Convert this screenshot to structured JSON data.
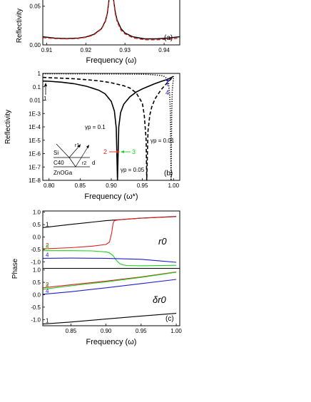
{
  "chart_data": [
    {
      "type": "line",
      "panel_label": "(a)",
      "xlabel": "Frequency (ω)",
      "ylabel": "Reflectivity",
      "xlim": [
        0.909,
        0.944
      ],
      "ylim": [
        0.0,
        0.058
      ],
      "x_ticks": [
        "0.91",
        "0.92",
        "0.93",
        "0.94"
      ],
      "x_tick_values": [
        0.91,
        0.92,
        0.93,
        0.94
      ],
      "y_ticks": [
        "0.00",
        "0.05"
      ],
      "y_tick_values": [
        0.0,
        0.05
      ],
      "series": [
        {
          "style": "solid",
          "color": "#000000",
          "x": [
            0.909,
            0.912,
            0.915,
            0.918,
            0.92,
            0.922,
            0.924,
            0.925,
            0.9255,
            0.926,
            0.927,
            0.9275,
            0.928,
            0.929,
            0.93,
            0.932,
            0.935,
            0.938,
            0.941,
            0.944
          ],
          "y": [
            0.0105,
            0.0088,
            0.0082,
            0.0088,
            0.0102,
            0.0135,
            0.021,
            0.031,
            0.041,
            0.062,
            0.062,
            0.043,
            0.032,
            0.021,
            0.0155,
            0.0105,
            0.0078,
            0.0078,
            0.0089,
            0.0105
          ]
        },
        {
          "style": "dashed",
          "color": "#e0211a",
          "x": [
            0.909,
            0.912,
            0.915,
            0.918,
            0.92,
            0.922,
            0.924,
            0.925,
            0.9255,
            0.926,
            0.927,
            0.9275,
            0.928,
            0.929,
            0.93,
            0.932,
            0.935,
            0.938,
            0.941,
            0.944
          ],
          "y": [
            0.0095,
            0.0082,
            0.0077,
            0.0083,
            0.0098,
            0.0128,
            0.0205,
            0.03,
            0.04,
            0.062,
            0.062,
            0.041,
            0.03,
            0.019,
            0.0142,
            0.0092,
            0.0066,
            0.0066,
            0.0074,
            0.0088
          ]
        }
      ]
    },
    {
      "type": "line",
      "panel_label": "(b)",
      "xlabel": "Frequency (ω*)",
      "ylabel": "Reflectivity",
      "xlim": [
        0.79,
        1.01
      ],
      "ylim_log10": [
        -8,
        0
      ],
      "x_ticks": [
        "0.80",
        "0.85",
        "0.90",
        "0.95",
        "1.00"
      ],
      "x_tick_values": [
        0.8,
        0.85,
        0.9,
        0.95,
        1.0
      ],
      "y_ticks": [
        "1",
        "0.1",
        "0.01",
        "1E-3",
        "1E-4",
        "1E-5",
        "1E-6",
        "1E-7",
        "1E-8"
      ],
      "y_tick_values_log10": [
        0,
        -1,
        -2,
        -3,
        -4,
        -5,
        -6,
        -7,
        -8
      ],
      "series": [
        {
          "style": "solid",
          "color": "#000000",
          "x": [
            0.79,
            0.8,
            0.82,
            0.84,
            0.86,
            0.88,
            0.89,
            0.9,
            0.905,
            0.908,
            0.91,
            0.912,
            0.915,
            0.92,
            0.93,
            0.94,
            0.95,
            0.96,
            0.97,
            0.98,
            0.99,
            1.0
          ],
          "y": [
            0.27,
            0.26,
            0.22,
            0.17,
            0.11,
            0.055,
            0.03,
            0.008,
            0.0015,
            8e-05,
            1e-08,
            0.0001,
            0.0012,
            0.005,
            0.018,
            0.04,
            0.07,
            0.11,
            0.17,
            0.25,
            0.35,
            0.6
          ]
        },
        {
          "style": "dashed",
          "color": "#000000",
          "x": [
            0.79,
            0.8,
            0.82,
            0.84,
            0.86,
            0.88,
            0.9,
            0.92,
            0.93,
            0.94,
            0.95,
            0.953,
            0.956,
            0.957,
            0.959,
            0.962,
            0.965,
            0.97,
            0.98,
            0.99,
            1.0
          ],
          "y": [
            0.5,
            0.48,
            0.44,
            0.4,
            0.34,
            0.28,
            0.2,
            0.12,
            0.08,
            0.035,
            0.006,
            0.0007,
            1e-05,
            1e-08,
            5e-05,
            0.0008,
            0.003,
            0.012,
            0.06,
            0.2,
            0.6
          ]
        },
        {
          "style": "dotted",
          "color": "#000000",
          "x": [
            0.79,
            0.82,
            0.86,
            0.9,
            0.94,
            0.96,
            0.98,
            0.985,
            0.99,
            0.992,
            0.994,
            0.995,
            0.996,
            0.997,
            0.998,
            1.0
          ],
          "y": [
            0.95,
            0.94,
            0.93,
            0.92,
            0.88,
            0.84,
            0.7,
            0.6,
            0.4,
            0.2,
            0.02,
            0.001,
            1e-08,
            0.001,
            0.05,
            0.6
          ]
        }
      ],
      "annotations": {
        "gamma_01": "γp = 0.1",
        "gamma_005": "γp = 0.05",
        "gamma_001": "γp = 0.01",
        "marker_1": "1",
        "marker_2": "2",
        "marker_3": "3",
        "marker_4": "4"
      },
      "inset": {
        "layer_top": "Si",
        "layer_mid": "C40",
        "layer_bottom": "ZnOGa",
        "thickness": "d",
        "r1": "r1",
        "r2": "r2"
      }
    },
    {
      "type": "line",
      "panel_label": "(c)",
      "xlabel": "Frequency (ω)",
      "ylabel": "Phase",
      "xlim": [
        0.81,
        1.005
      ],
      "x_ticks": [
        "0.85",
        "0.90",
        "0.95",
        "1.00"
      ],
      "x_tick_values": [
        0.85,
        0.9,
        0.95,
        1.0
      ],
      "subplots": [
        {
          "label": "r0",
          "ylim": [
            -1.25,
            1.05
          ],
          "y_ticks": [
            "1.0",
            "0.5",
            "0.0",
            "-0.5",
            "-1.0"
          ],
          "y_tick_values": [
            1.0,
            0.5,
            0.0,
            -0.5,
            -1.0
          ],
          "series": [
            {
              "name": "1",
              "color": "#000000",
              "x": [
                0.81,
                0.85,
                0.9,
                0.95,
                1.0
              ],
              "y": [
                0.38,
                0.51,
                0.66,
                0.76,
                0.83
              ]
            },
            {
              "name": "2",
              "color": "#dd1f1f",
              "x": [
                0.81,
                0.85,
                0.88,
                0.9,
                0.905,
                0.908,
                0.91,
                0.912,
                0.915,
                0.92,
                0.95,
                1.0
              ],
              "y": [
                -0.48,
                -0.43,
                -0.37,
                -0.3,
                -0.2,
                0.15,
                0.55,
                0.66,
                0.68,
                0.7,
                0.76,
                0.82
              ]
            },
            {
              "name": "3",
              "color": "#1fcf1f",
              "x": [
                0.81,
                0.85,
                0.88,
                0.9,
                0.905,
                0.91,
                0.915,
                0.92,
                0.925,
                0.93,
                0.95,
                1.0
              ],
              "y": [
                -0.55,
                -0.55,
                -0.56,
                -0.6,
                -0.64,
                -0.75,
                -0.95,
                -1.08,
                -1.13,
                -1.15,
                -1.16,
                -1.14
              ]
            },
            {
              "name": "4",
              "color": "#1f1fcf",
              "x": [
                0.81,
                0.85,
                0.9,
                0.95,
                0.98,
                1.0
              ],
              "y": [
                -0.86,
                -0.85,
                -0.86,
                -0.9,
                -0.97,
                -1.02
              ]
            }
          ]
        },
        {
          "label": "δr0",
          "ylim": [
            -1.25,
            1.05
          ],
          "y_ticks": [
            "1.0",
            "0.5",
            "0.0",
            "-0.5",
            "-1.0"
          ],
          "y_tick_values": [
            1.0,
            0.5,
            0.0,
            -0.5,
            -1.0
          ],
          "series": [
            {
              "name": "1",
              "color": "#000000",
              "x": [
                0.81,
                0.85,
                0.9,
                0.95,
                1.0
              ],
              "y": [
                -1.18,
                -1.1,
                -0.98,
                -0.86,
                -0.75
              ]
            },
            {
              "name": "2",
              "color": "#dd1f1f",
              "x": [
                0.81,
                0.85,
                0.9,
                0.95,
                1.0
              ],
              "y": [
                0.28,
                0.4,
                0.55,
                0.72,
                0.92
              ]
            },
            {
              "name": "3",
              "color": "#1fcf1f",
              "x": [
                0.81,
                0.85,
                0.9,
                0.95,
                1.0
              ],
              "y": [
                0.22,
                0.36,
                0.52,
                0.7,
                0.91
              ]
            },
            {
              "name": "4",
              "color": "#1f1fcf",
              "x": [
                0.81,
                0.85,
                0.9,
                0.95,
                1.0
              ],
              "y": [
                0.02,
                0.12,
                0.28,
                0.45,
                0.62
              ]
            }
          ]
        }
      ]
    }
  ]
}
